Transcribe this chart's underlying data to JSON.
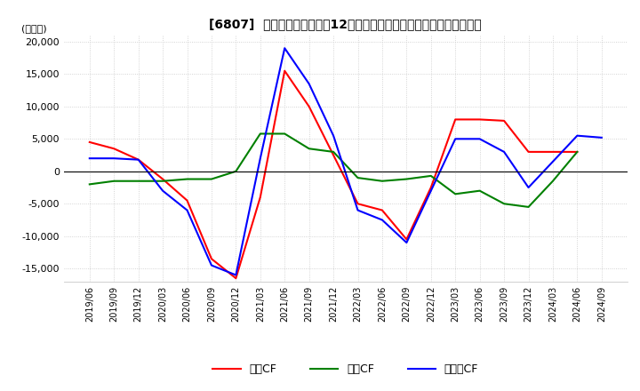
{
  "title": "[6807]  キャッシュフローの12か月移動合計の対前年同期増減額の推移",
  "ylabel": "(百万円)",
  "ylim": [
    -17000,
    21000
  ],
  "yticks": [
    -15000,
    -10000,
    -5000,
    0,
    5000,
    10000,
    15000,
    20000
  ],
  "dates": [
    "2019/06",
    "2019/09",
    "2019/12",
    "2020/03",
    "2020/06",
    "2020/09",
    "2020/12",
    "2021/03",
    "2021/06",
    "2021/09",
    "2021/12",
    "2022/03",
    "2022/06",
    "2022/09",
    "2022/12",
    "2023/03",
    "2023/06",
    "2023/09",
    "2023/12",
    "2024/03",
    "2024/06",
    "2024/09"
  ],
  "operating_cf": [
    4500,
    3500,
    1800,
    -1200,
    -4500,
    -13500,
    -16500,
    -4000,
    15500,
    10000,
    2500,
    -5000,
    -6000,
    -10500,
    -2500,
    8000,
    8000,
    7800,
    3000,
    3000,
    3000,
    null
  ],
  "investing_cf": [
    -2000,
    -1500,
    -1500,
    -1500,
    -1200,
    -1200,
    0,
    5800,
    5800,
    3500,
    3000,
    -1000,
    -1500,
    -1200,
    -700,
    -3500,
    -3000,
    -5000,
    -5500,
    -1500,
    3000,
    null
  ],
  "free_cf": [
    2000,
    2000,
    1800,
    -3000,
    -6000,
    -14500,
    -16000,
    2000,
    19000,
    13500,
    5500,
    -6000,
    -7500,
    -11000,
    -3000,
    5000,
    5000,
    3000,
    -2500,
    1500,
    5500,
    5200
  ],
  "operating_color": "#ff0000",
  "investing_color": "#008000",
  "free_color": "#0000ff",
  "background_color": "#ffffff",
  "grid_color": "#c8c8c8",
  "legend_labels": [
    "営業CF",
    "投資CF",
    "フリーCF"
  ]
}
